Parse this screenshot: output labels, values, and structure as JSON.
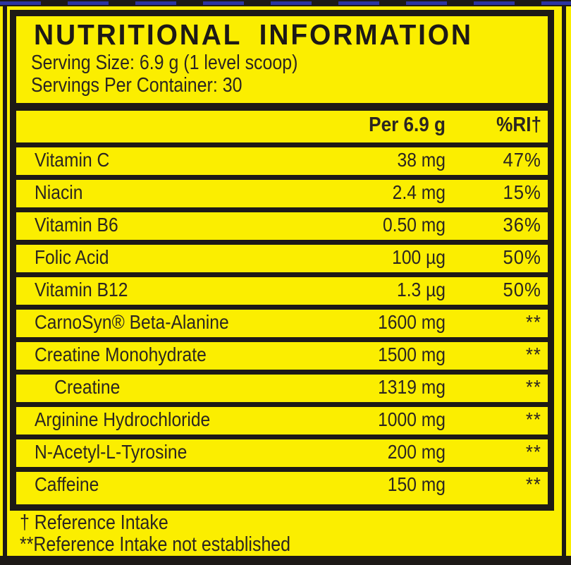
{
  "colors": {
    "yellow": "#FBEE00",
    "ink": "#1d1916",
    "text": "#2b2521",
    "blue": "#2c35a0"
  },
  "label": {
    "title": "NUTRITIONAL INFORMATION",
    "serving_size": "Serving Size: 6.9 g (1 level scoop)",
    "servings_per_container": "Servings Per Container: 30",
    "columns": {
      "amount": "Per 6.9 g",
      "rdi": "%RI†"
    },
    "rows": [
      {
        "name": "Vitamin C",
        "amount": "38 mg",
        "rdi": "47%",
        "indent": false
      },
      {
        "name": "Niacin",
        "amount": "2.4 mg",
        "rdi": "15%",
        "indent": false
      },
      {
        "name": "Vitamin B6",
        "amount": "0.50 mg",
        "rdi": "36%",
        "indent": false
      },
      {
        "name": "Folic Acid",
        "amount": "100 µg",
        "rdi": "50%",
        "indent": false
      },
      {
        "name": "Vitamin B12",
        "amount": "1.3 µg",
        "rdi": "50%",
        "indent": false
      },
      {
        "name": "CarnoSyn® Beta-Alanine",
        "amount": "1600 mg",
        "rdi": "**",
        "indent": false
      },
      {
        "name": "Creatine Monohydrate",
        "amount": "1500 mg",
        "rdi": "**",
        "indent": false
      },
      {
        "name": "Creatine",
        "amount": "1319 mg",
        "rdi": "**",
        "indent": true
      },
      {
        "name": "Arginine Hydrochloride",
        "amount": "1000 mg",
        "rdi": "**",
        "indent": false
      },
      {
        "name": "N-Acetyl-L-Tyrosine",
        "amount": "200 mg",
        "rdi": "**",
        "indent": false
      },
      {
        "name": "Caffeine",
        "amount": "150 mg",
        "rdi": "**",
        "indent": false
      }
    ],
    "footnotes": [
      "† Reference Intake",
      "**Reference Intake not established"
    ]
  }
}
